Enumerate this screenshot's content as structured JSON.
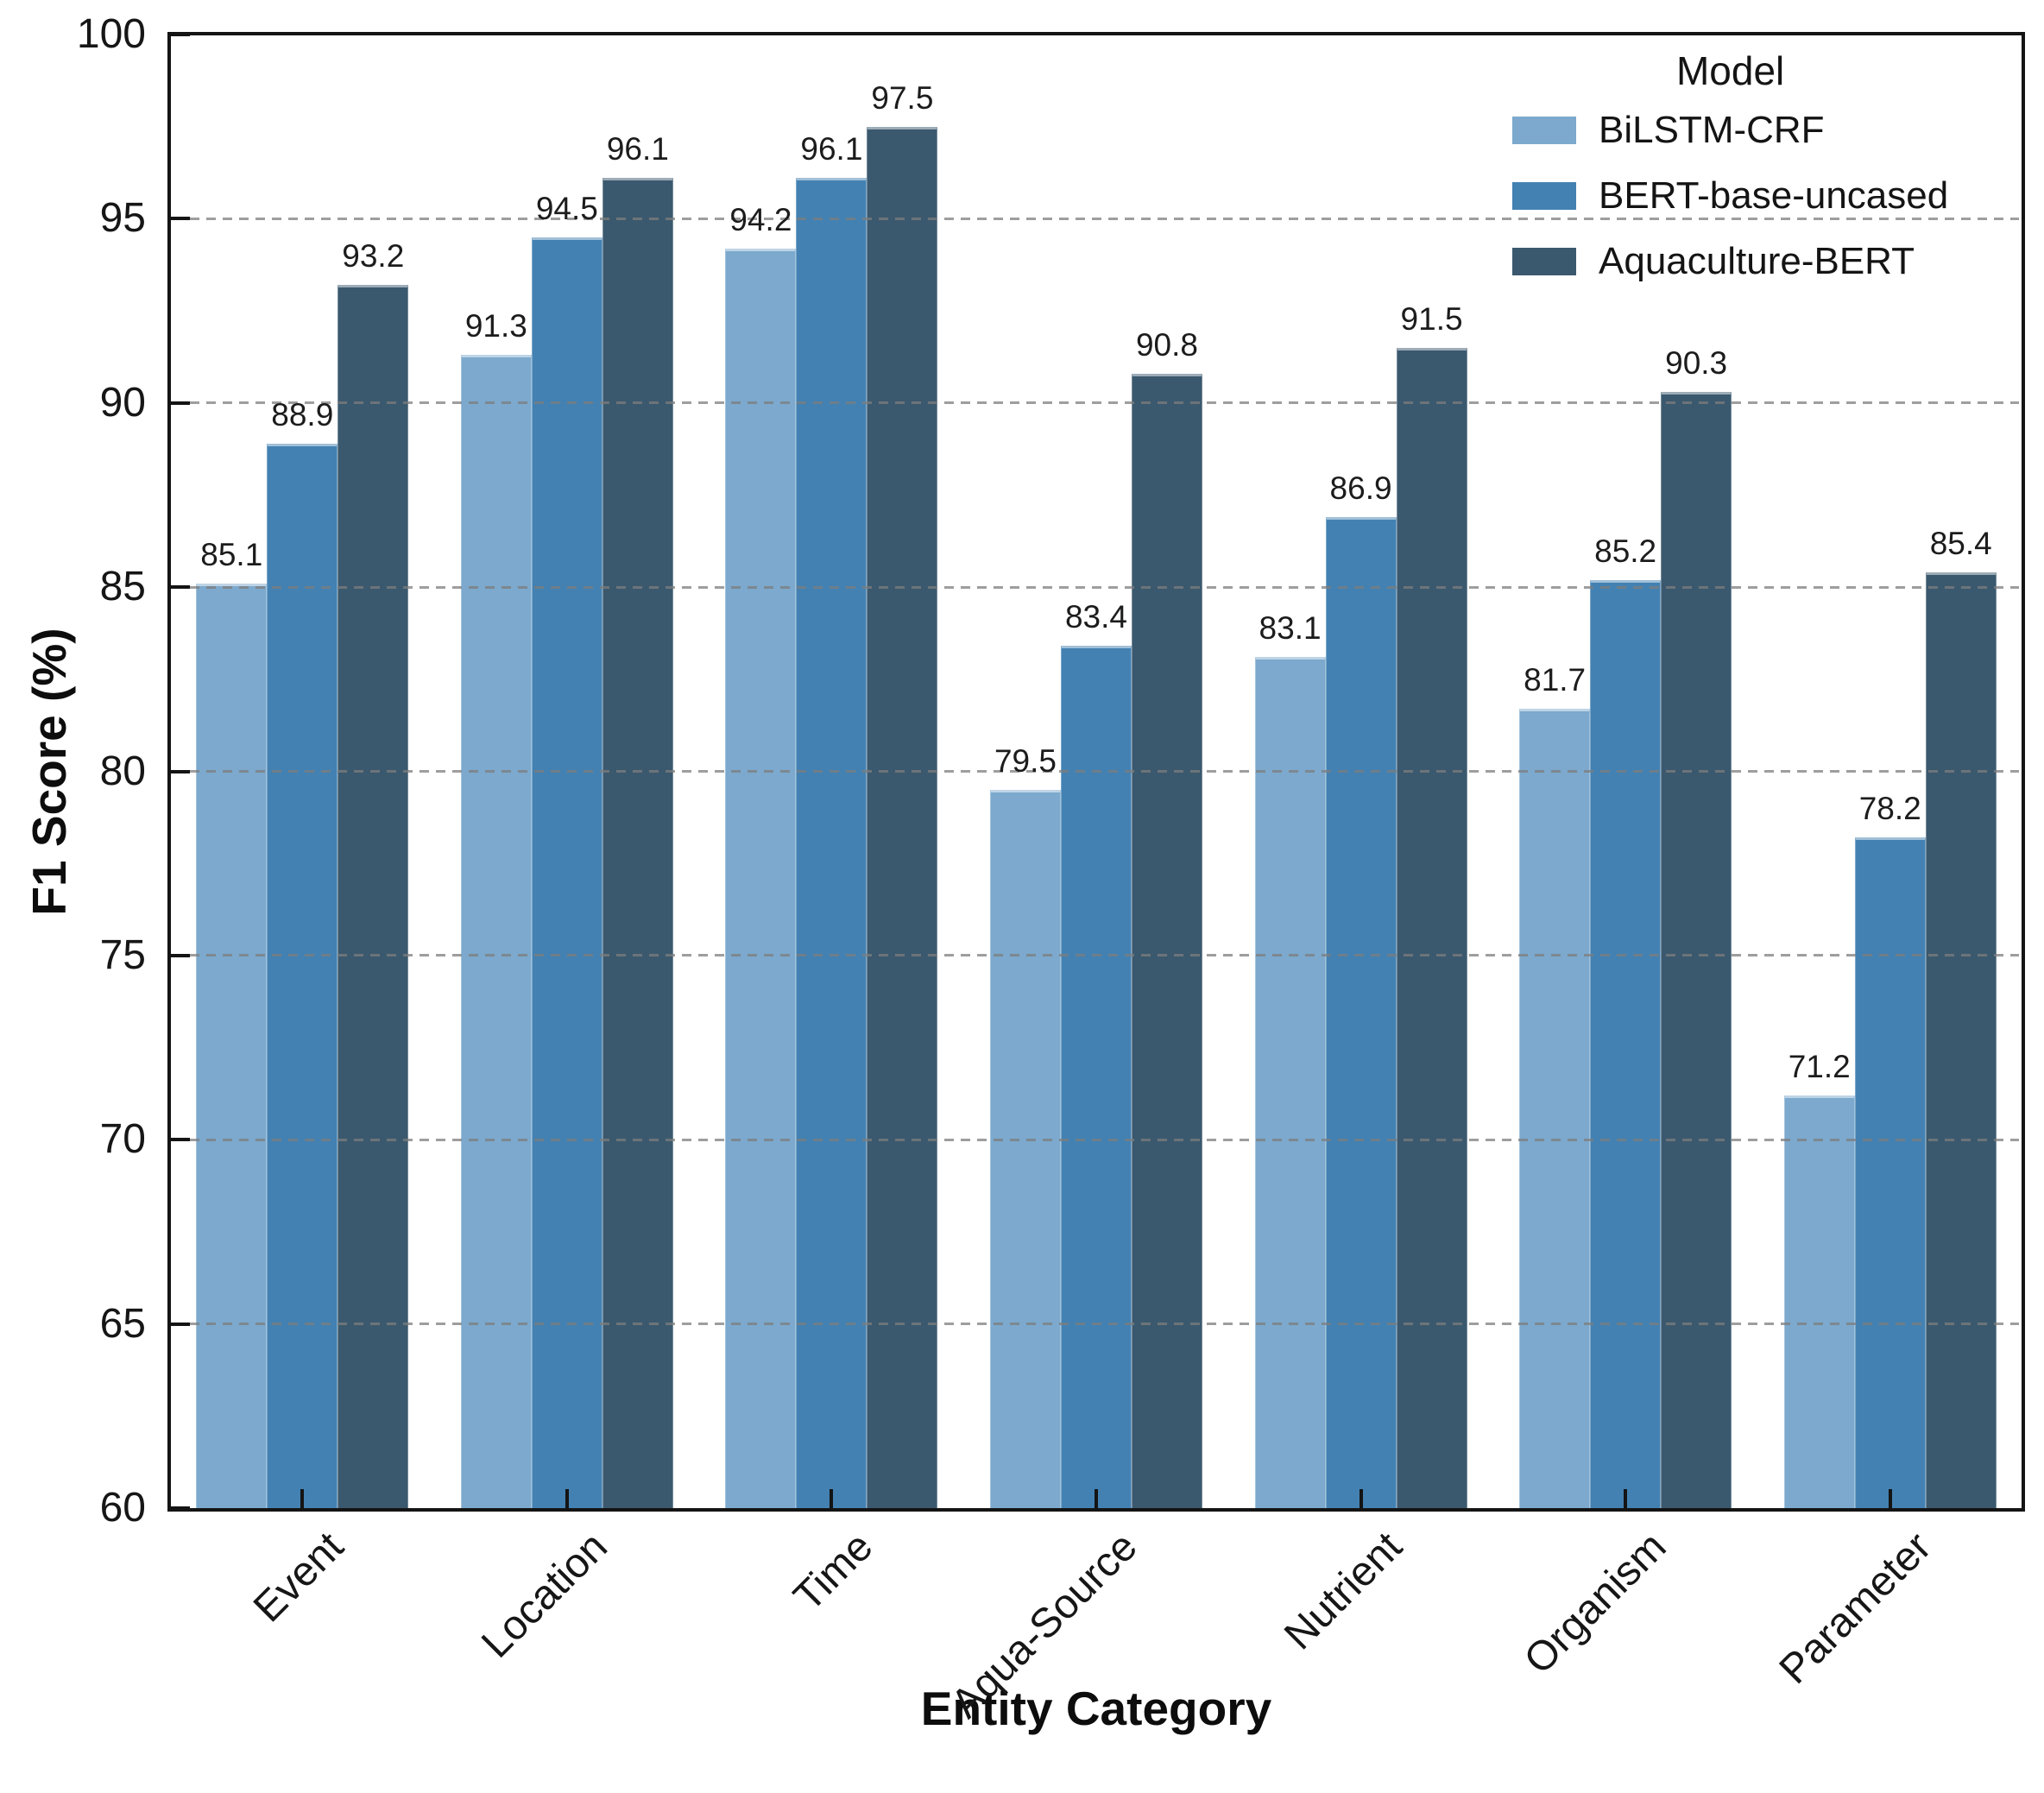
{
  "chart_data": {
    "type": "bar",
    "title": "",
    "xlabel": "Entity Category",
    "ylabel": "F1 Score (%)",
    "ylim": [
      60,
      100
    ],
    "yticks": [
      60,
      65,
      70,
      75,
      80,
      85,
      90,
      95,
      100
    ],
    "grid": "horizontal dashed gray, drawn over bars",
    "legend_title": "Model",
    "legend_position": "top-right inside plot, no frame",
    "categories": [
      "Event",
      "Location",
      "Time",
      "Aqua-Source",
      "Nutrient",
      "Organism",
      "Parameter"
    ],
    "series": [
      {
        "name": "BiLSTM-CRF",
        "color": "#7CA9CD",
        "values": [
          85.1,
          91.3,
          94.2,
          79.5,
          83.1,
          81.7,
          71.2
        ]
      },
      {
        "name": "BERT-base-uncased",
        "color": "#4381B2",
        "values": [
          88.9,
          94.5,
          96.1,
          83.4,
          86.9,
          85.2,
          78.2
        ]
      },
      {
        "name": "Aquaculture-BERT",
        "color": "#3B596E",
        "values": [
          93.2,
          96.1,
          97.5,
          90.8,
          91.5,
          90.3,
          85.4
        ]
      }
    ],
    "bar_labels": "each bar labeled with its value to one decimal place above the bar",
    "tick_direction": "in",
    "spines": "full box, black"
  }
}
